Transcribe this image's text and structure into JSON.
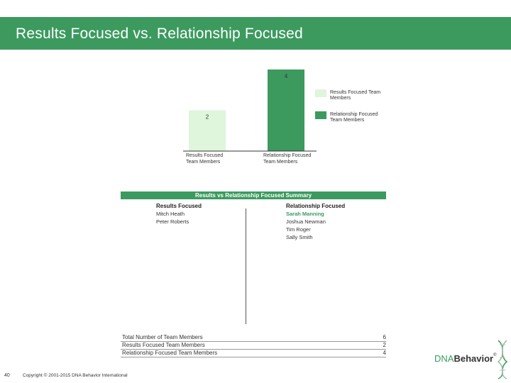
{
  "page": {
    "title": "Results Focused vs. Relationship Focused",
    "page_number": "40",
    "copyright": "Copyright © 2001-2015 DNA Behavior International",
    "logo": {
      "dna": "DNA",
      "behavior": "Behavior",
      "mark": "®"
    }
  },
  "colors": {
    "brand_green": "#3c9a5f",
    "results_bar": "#dff5dc",
    "relationship_bar": "#3c9a5f"
  },
  "chart_data": {
    "type": "bar",
    "categories": [
      "Results Focused Team Members",
      "Relationship Focused Team Members"
    ],
    "category_lines": [
      [
        "Results Focused",
        "Team Members"
      ],
      [
        "Relationship Focused",
        "Team Members"
      ]
    ],
    "values": [
      2,
      4
    ],
    "data_labels": [
      "2",
      "4"
    ],
    "ylim": [
      0,
      4
    ],
    "legend": {
      "placement": "right",
      "entries": [
        {
          "label_lines": [
            "Results Focused Team",
            "Members"
          ],
          "color": "#dff5dc"
        },
        {
          "label_lines": [
            "Relationship Focused",
            "Team Members"
          ],
          "color": "#3c9a5f"
        }
      ]
    }
  },
  "summary": {
    "title": "Results vs Relationship Focused Summary",
    "left_heading": "Results Focused",
    "right_heading": "Relationship Focused",
    "left_names": [
      "Mitch Heath",
      "Peter Roberts"
    ],
    "right_names": [
      "Sarah Manning",
      "Joshua Newman",
      "Tim Roger",
      "Sally Smith"
    ],
    "right_highlight_index": 0,
    "totals": [
      {
        "label": "Total Number of Team Members",
        "value": "6"
      },
      {
        "label": "Results Focused Team Members",
        "value": "2"
      },
      {
        "label": "Relationship Focused Team Members",
        "value": "4"
      }
    ]
  }
}
